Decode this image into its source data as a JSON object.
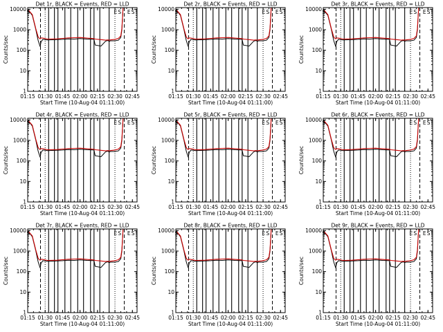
{
  "chart_data": {
    "type": "line",
    "ylabel": "Counts/sec",
    "xlabel": "Start Time (10-Aug-04 01:11:00)",
    "x_tick_labels": [
      "01:15",
      "01:30",
      "01:45",
      "02:00",
      "02:15",
      "02:30",
      "02:45"
    ],
    "x_ticks_minutes": [
      15,
      30,
      45,
      60,
      75,
      90,
      105
    ],
    "xlim_minutes": [
      15,
      109
    ],
    "y_tick_labels": [
      "1",
      "10",
      "100",
      "1000",
      "10000"
    ],
    "y_ticks": [
      1,
      10,
      100,
      1000,
      10000
    ],
    "ylim": [
      1,
      12000
    ],
    "yscale": "log",
    "markers": [
      "S",
      "E",
      "S",
      "E",
      "S"
    ],
    "marker_minutes": [
      15.5,
      90.5,
      94,
      102,
      105.5
    ],
    "dotted_lines_minutes": [
      30,
      90
    ],
    "dashed_lines_minutes": [
      26,
      98
    ],
    "solid_lines_minutes": [
      33,
      38,
      41,
      47,
      52,
      58,
      63,
      69,
      72,
      77,
      85
    ],
    "series_names": [
      "Events (BLACK)",
      "LLD (RED)"
    ],
    "series_colors": [
      "#000000",
      "#cc0000"
    ],
    "series_x_minutes": [
      15,
      19,
      22,
      24,
      25,
      25.7,
      26.5,
      28,
      32,
      40,
      45,
      50,
      55,
      60,
      66,
      72,
      73,
      78,
      82,
      84,
      85,
      86,
      90,
      93,
      95,
      96,
      97
    ],
    "events_values": [
      10000,
      5000,
      1000,
      300,
      200,
      150,
      260,
      340,
      320,
      330,
      340,
      360,
      350,
      370,
      350,
      340,
      180,
      160,
      280,
      300,
      270,
      290,
      290,
      310,
      420,
      1000,
      12000
    ],
    "lld_values": [
      10000,
      5500,
      1100,
      450,
      380,
      360,
      400,
      390,
      350,
      360,
      380,
      400,
      410,
      420,
      390,
      370,
      350,
      330,
      310,
      320,
      310,
      320,
      340,
      380,
      500,
      1200,
      12000
    ],
    "panels": [
      {
        "title": "Det 1r, BLACK = Events, RED = LLD"
      },
      {
        "title": "Det 2r, BLACK = Events, RED = LLD"
      },
      {
        "title": "Det 3r, BLACK = Events, RED = LLD"
      },
      {
        "title": "Det 4r, BLACK = Events, RED = LLD"
      },
      {
        "title": "Det 5r, BLACK = Events, RED = LLD"
      },
      {
        "title": "Det 6r, BLACK = Events, RED = LLD"
      },
      {
        "title": "Det 7r, BLACK = Events, RED = LLD"
      },
      {
        "title": "Det 8r, BLACK = Events, RED = LLD"
      },
      {
        "title": "Det 9r, BLACK = Events, RED = LLD"
      }
    ]
  }
}
